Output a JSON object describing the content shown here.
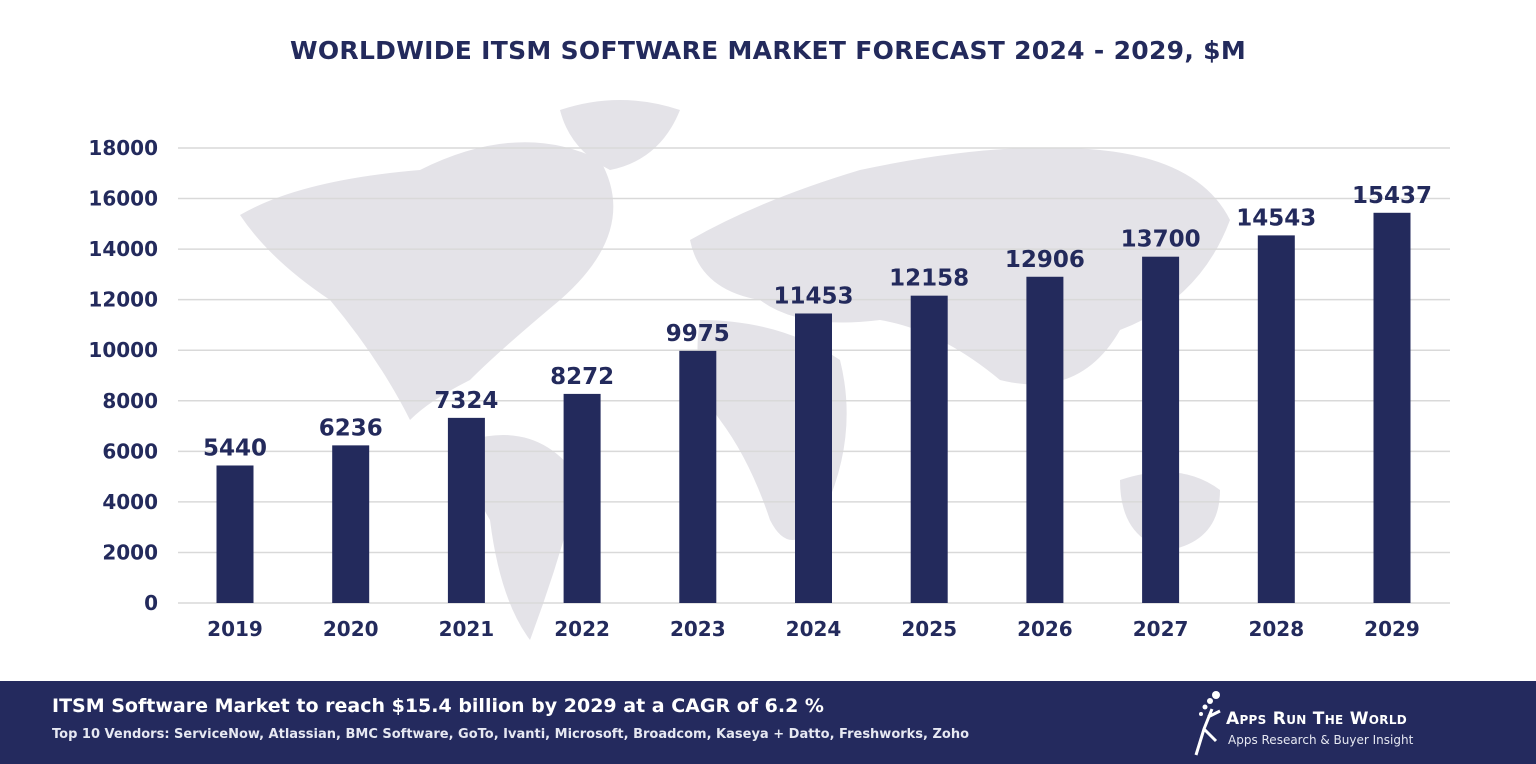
{
  "chart_data": {
    "type": "bar",
    "title": "WORLDWIDE ITSM SOFTWARE MARKET FORECAST 2024 - 2029, $M",
    "categories": [
      "2019",
      "2020",
      "2021",
      "2022",
      "2023",
      "2024",
      "2025",
      "2026",
      "2027",
      "2028",
      "2029"
    ],
    "values": [
      5440,
      6236,
      7324,
      8272,
      9975,
      11453,
      12158,
      12906,
      13700,
      14543,
      15437
    ],
    "yticks": [
      0,
      2000,
      4000,
      6000,
      8000,
      10000,
      12000,
      14000,
      16000,
      18000
    ],
    "ylim": [
      0,
      18000
    ],
    "grid": true,
    "xlabel": "",
    "ylabel": "",
    "bar_color": "#232a5c",
    "text_color": "#232a5c",
    "grid_color": "#d9d9d9",
    "background": "world map (light grey)"
  },
  "footer": {
    "headline": "ITSM Software Market to reach $15.4 billion by 2029 at a CAGR of 6.2 %",
    "vendors": "Top 10 Vendors: ServiceNow, Atlassian, BMC Software, GoTo, Ivanti, Microsoft, Broadcom, Kaseya + Datto, Freshworks, Zoho",
    "background": "#242a5e"
  },
  "logo": {
    "name": "Apps Run The World",
    "tagline": "Apps Research & Buyer Insight"
  }
}
